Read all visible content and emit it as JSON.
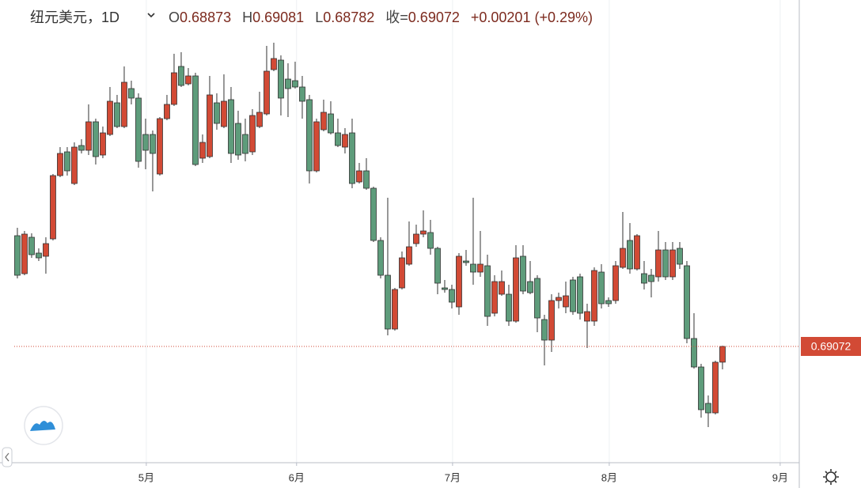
{
  "header": {
    "symbol": "纽元美元，1D",
    "ohlc": [
      {
        "key": "O",
        "value": "0.68873"
      },
      {
        "key": "H",
        "value": "0.69081"
      },
      {
        "key": "L",
        "value": "0.68782"
      },
      {
        "key": "收=",
        "value": "0.69072"
      }
    ],
    "change": "+0.00201 (+0.29%)"
  },
  "chart_data": {
    "type": "candlestick",
    "up_color": "#d24a35",
    "down_color": "#5e9c7b",
    "ylim": [
      0.67602,
      0.73452
    ],
    "xlim": [
      -2.44,
      109.78
    ],
    "xticks": [
      {
        "value": 18.1,
        "label": "5月"
      },
      {
        "value": 39.2,
        "label": "6月"
      },
      {
        "value": 61.1,
        "label": "7月"
      },
      {
        "value": 83.1,
        "label": "8月"
      },
      {
        "value": 107.1,
        "label": "9月"
      }
    ],
    "grid": true,
    "last_price": 0.69072,
    "open": [
      0.70472,
      0.69992,
      0.70452,
      0.70252,
      0.70212,
      0.70432,
      0.71232,
      0.71532,
      0.71132,
      0.71612,
      0.71552,
      0.71912,
      0.71492,
      0.71752,
      0.72152,
      0.71852,
      0.72332,
      0.72212,
      0.71752,
      0.71752,
      0.71252,
      0.71952,
      0.72132,
      0.72612,
      0.72392,
      0.72492,
      0.71452,
      0.71472,
      0.72152,
      0.71852,
      0.72192,
      0.71892,
      0.71752,
      0.71532,
      0.71852,
      0.72012,
      0.72572,
      0.72692,
      0.72452,
      0.72432,
      0.72352,
      0.72192,
      0.71292,
      0.71812,
      0.72012,
      0.71772,
      0.71592,
      0.71772,
      0.71152,
      0.71292,
      0.71072,
      0.70412,
      0.69972,
      0.69292,
      0.69812,
      0.70112,
      0.70372,
      0.70492,
      0.70512,
      0.70312,
      0.69812,
      0.69792,
      0.69572,
      0.70152,
      0.70112,
      0.70012,
      0.70092,
      0.69492,
      0.69732,
      0.69732,
      0.69392,
      0.70212,
      0.69892,
      0.69932,
      0.69412,
      0.69152,
      0.69652,
      0.69572,
      0.69912,
      0.69952,
      0.69392,
      0.69392,
      0.70012,
      0.69652,
      0.69652,
      0.70072,
      0.70412,
      0.70052,
      0.69992,
      0.69972,
      0.69952,
      0.70292,
      0.69952,
      0.70312,
      0.70092,
      0.69172,
      0.68812,
      0.68352,
      0.68232,
      0.68873
    ],
    "high": [
      0.70572,
      0.70532,
      0.70502,
      0.70312,
      0.70452,
      0.71252,
      0.71592,
      0.71592,
      0.71652,
      0.71692,
      0.72132,
      0.71952,
      0.71852,
      0.72352,
      0.72252,
      0.72612,
      0.72432,
      0.72272,
      0.71952,
      0.71802,
      0.71972,
      0.72252,
      0.72772,
      0.72792,
      0.72592,
      0.72532,
      0.71752,
      0.72492,
      0.72272,
      0.72512,
      0.72352,
      0.72052,
      0.71952,
      0.72072,
      0.72292,
      0.72872,
      0.72912,
      0.72752,
      0.72652,
      0.72672,
      0.72492,
      0.72252,
      0.71952,
      0.72192,
      0.72172,
      0.71952,
      0.71832,
      0.71952,
      0.71392,
      0.71452,
      0.71092,
      0.70452,
      0.70952,
      0.69812,
      0.70272,
      0.70652,
      0.70612,
      0.70792,
      0.70672,
      0.70332,
      0.69912,
      0.69852,
      0.70252,
      0.70292,
      0.70952,
      0.70532,
      0.70232,
      0.69972,
      0.70032,
      0.69852,
      0.70352,
      0.70352,
      0.70152,
      0.69972,
      0.69472,
      0.69732,
      0.69752,
      0.69892,
      0.69952,
      0.69992,
      0.69612,
      0.70072,
      0.70112,
      0.69692,
      0.70152,
      0.70772,
      0.70632,
      0.70492,
      0.70152,
      0.70052,
      0.70532,
      0.70392,
      0.70392,
      0.70392,
      0.70152,
      0.69492,
      0.68852,
      0.68452,
      0.68892,
      0.69081
    ],
    "low": [
      0.69932,
      0.69972,
      0.70192,
      0.70152,
      0.69992,
      0.70412,
      0.71212,
      0.71232,
      0.71112,
      0.71512,
      0.71492,
      0.71372,
      0.71452,
      0.71732,
      0.71832,
      0.71832,
      0.72132,
      0.71332,
      0.71312,
      0.71032,
      0.71232,
      0.71932,
      0.72112,
      0.72352,
      0.72372,
      0.71352,
      0.71392,
      0.71452,
      0.71812,
      0.71832,
      0.71392,
      0.71432,
      0.71412,
      0.71492,
      0.71832,
      0.71992,
      0.72552,
      0.71992,
      0.71972,
      0.72332,
      0.71952,
      0.71132,
      0.71272,
      0.71792,
      0.71752,
      0.71592,
      0.71512,
      0.71072,
      0.71132,
      0.71052,
      0.70392,
      0.69932,
      0.69212,
      0.69272,
      0.69792,
      0.70092,
      0.70332,
      0.70452,
      0.70232,
      0.69732,
      0.69752,
      0.69552,
      0.69472,
      0.70092,
      0.69852,
      0.69952,
      0.69332,
      0.69452,
      0.69712,
      0.69332,
      0.69372,
      0.69732,
      0.69732,
      0.69252,
      0.68832,
      0.69002,
      0.69552,
      0.69492,
      0.69472,
      0.69412,
      0.69052,
      0.69332,
      0.69552,
      0.69572,
      0.69612,
      0.70052,
      0.69992,
      0.70032,
      0.69792,
      0.69692,
      0.69892,
      0.69912,
      0.69912,
      0.70052,
      0.69112,
      0.68792,
      0.68172,
      0.68052,
      0.68212,
      0.68782
    ],
    "close": [
      0.69972,
      0.70492,
      0.70232,
      0.70192,
      0.70372,
      0.71232,
      0.71512,
      0.71292,
      0.71592,
      0.71552,
      0.71912,
      0.71472,
      0.71772,
      0.72172,
      0.71852,
      0.72412,
      0.72212,
      0.71412,
      0.71552,
      0.71512,
      0.71952,
      0.72132,
      0.72532,
      0.72372,
      0.72492,
      0.71372,
      0.71652,
      0.72252,
      0.71892,
      0.72172,
      0.71512,
      0.71492,
      0.71512,
      0.71992,
      0.72032,
      0.72552,
      0.72712,
      0.72212,
      0.72332,
      0.72352,
      0.72172,
      0.71292,
      0.71912,
      0.72032,
      0.71772,
      0.71612,
      0.71752,
      0.71132,
      0.71292,
      0.71072,
      0.70412,
      0.69972,
      0.69292,
      0.69792,
      0.70192,
      0.70332,
      0.70492,
      0.70532,
      0.70312,
      0.69872,
      0.69792,
      0.69632,
      0.70212,
      0.70132,
      0.70012,
      0.70112,
      0.69452,
      0.69892,
      0.69892,
      0.69392,
      0.70192,
      0.69772,
      0.69752,
      0.69432,
      0.69152,
      0.69652,
      0.69692,
      0.69712,
      0.69512,
      0.69492,
      0.69512,
      0.70032,
      0.69612,
      0.69612,
      0.70092,
      0.70312,
      0.70052,
      0.70472,
      0.69872,
      0.69892,
      0.70292,
      0.69952,
      0.70292,
      0.70112,
      0.69172,
      0.68812,
      0.68272,
      0.68232,
      0.68872,
      0.69072
    ]
  }
}
